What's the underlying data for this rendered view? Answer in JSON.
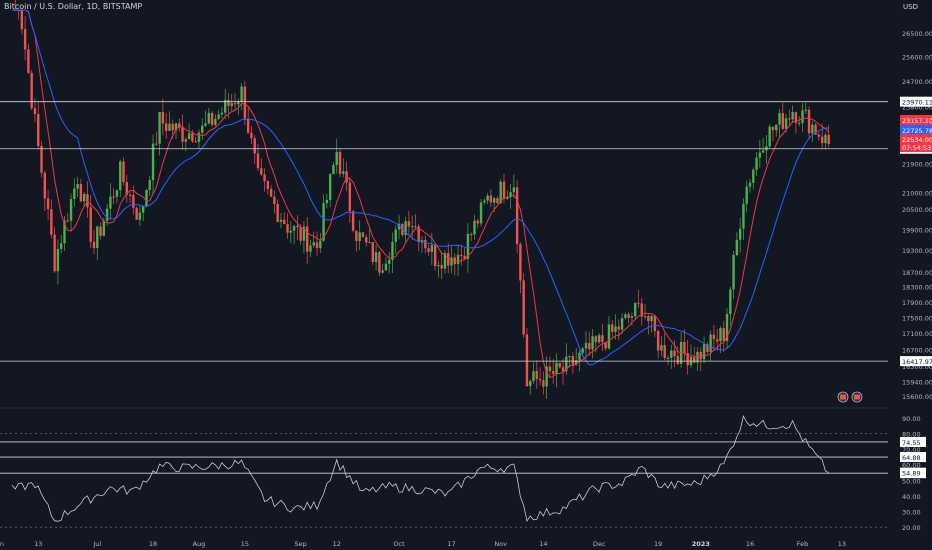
{
  "header": {
    "symbol": "Bitcoin / U.S. Dollar, 1D, BITSTAMP",
    "currency": "USD"
  },
  "colors": {
    "background": "#131722",
    "up": "#26a69a",
    "up_candle": "#4caf50",
    "down_candle": "#ef5350",
    "ma_fast": "#f23645",
    "ma_slow": "#2962ff",
    "hline": "#d1d4dc",
    "rsi": "#c9cbd1"
  },
  "chart_data": [
    {
      "type": "candlestick",
      "title": "",
      "y_axis": {
        "scale": "log",
        "range": [
          15400,
          27400
        ],
        "tick_labels": [
          "26500.00",
          "25600.00",
          "24700.00",
          "23800.00",
          "22900.00",
          "21900.00",
          "21000.00",
          "20500.00",
          "19900.00",
          "19300.00",
          "18700.00",
          "18300.00",
          "17900.00",
          "17500.00",
          "17100.00",
          "16700.00",
          "16300.00",
          "15940.00",
          "15600.00"
        ],
        "tick_values": [
          26500,
          25600,
          24700,
          23800,
          22900,
          21900,
          21000,
          20500,
          19900,
          19300,
          18700,
          18300,
          17900,
          17500,
          17100,
          16700,
          16300,
          15940,
          15600
        ]
      },
      "x_axis": {
        "tick_labels": [
          "Jun",
          "13",
          "Jul",
          "18",
          "Aug",
          "15",
          "Sep",
          "12",
          "Oct",
          "17",
          "Nov",
          "14",
          "Dec",
          "19",
          "2023",
          "16",
          "Feb",
          "13"
        ]
      },
      "horizontal_lines": [
        {
          "value": 23970.11,
          "label": "23970.11"
        },
        {
          "value": 22379.82,
          "label": "22379.82"
        },
        {
          "value": 16417.97,
          "label": "16417.97"
        }
      ],
      "price_labels": [
        {
          "label": "23157.10",
          "series": "last price",
          "color": "#f23645"
        },
        {
          "label": "22725.78",
          "series": "MA slow",
          "color": "#2962ff"
        },
        {
          "label": "22534.00",
          "series": "MA fast",
          "color": "#f23645"
        },
        {
          "label": "07:54:53",
          "series": "countdown",
          "color": "#f23645"
        }
      ],
      "grid": false,
      "series": [
        {
          "kind": "candles",
          "approx_close_path": [
            {
              "date": "2022-06-05",
              "close": 30000
            },
            {
              "date": "2022-06-13",
              "close": 22400
            },
            {
              "date": "2022-06-18",
              "close": 19000
            },
            {
              "date": "2022-06-25",
              "close": 21500
            },
            {
              "date": "2022-06-30",
              "close": 19400
            },
            {
              "date": "2022-07-08",
              "close": 21600
            },
            {
              "date": "2022-07-14",
              "close": 20200
            },
            {
              "date": "2022-07-20",
              "close": 23300
            },
            {
              "date": "2022-07-27",
              "close": 22900
            },
            {
              "date": "2022-08-02",
              "close": 23000
            },
            {
              "date": "2022-08-14",
              "close": 24300
            },
            {
              "date": "2022-08-19",
              "close": 21400
            },
            {
              "date": "2022-08-28",
              "close": 20000
            },
            {
              "date": "2022-09-06",
              "close": 19400
            },
            {
              "date": "2022-09-12",
              "close": 22300
            },
            {
              "date": "2022-09-18",
              "close": 19800
            },
            {
              "date": "2022-09-25",
              "close": 18900
            },
            {
              "date": "2022-10-04",
              "close": 20300
            },
            {
              "date": "2022-10-12",
              "close": 19100
            },
            {
              "date": "2022-10-20",
              "close": 19200
            },
            {
              "date": "2022-10-28",
              "close": 20800
            },
            {
              "date": "2022-11-05",
              "close": 21300
            },
            {
              "date": "2022-11-09",
              "close": 15900
            },
            {
              "date": "2022-11-20",
              "close": 16200
            },
            {
              "date": "2022-11-25",
              "close": 16500
            },
            {
              "date": "2022-12-05",
              "close": 17100
            },
            {
              "date": "2022-12-14",
              "close": 17800
            },
            {
              "date": "2022-12-20",
              "close": 16700
            },
            {
              "date": "2022-12-31",
              "close": 16550
            },
            {
              "date": "2023-01-08",
              "close": 17100
            },
            {
              "date": "2023-01-14",
              "close": 20900
            },
            {
              "date": "2023-01-20",
              "close": 22700
            },
            {
              "date": "2023-01-29",
              "close": 23700
            },
            {
              "date": "2023-02-02",
              "close": 23400
            },
            {
              "date": "2023-02-09",
              "close": 22534
            }
          ]
        },
        {
          "kind": "line",
          "role": "fast moving average"
        },
        {
          "kind": "line",
          "role": "slow moving average"
        }
      ]
    },
    {
      "type": "line",
      "title": "",
      "y_axis": {
        "range": [
          15,
          95
        ],
        "tick_labels": [
          "90.00",
          "80.00",
          "70.00",
          "60.00",
          "50.00",
          "40.00",
          "30.00",
          "20.00"
        ],
        "tick_values": [
          90,
          80,
          70,
          60,
          50,
          40,
          30,
          20
        ]
      },
      "horizontal_lines": [
        {
          "value": 74.55,
          "label": "74.55"
        },
        {
          "value": 64.88,
          "label": "64.88"
        },
        {
          "value": 54.57,
          "label": "54.57"
        }
      ],
      "value_label": {
        "value": 54.89,
        "label": "54.89"
      },
      "series": [
        {
          "kind": "rsi",
          "approx_path": [
            {
              "date": "2022-06-05",
              "value": 44
            },
            {
              "date": "2022-06-12",
              "value": 48
            },
            {
              "date": "2022-06-18",
              "value": 24
            },
            {
              "date": "2022-06-25",
              "value": 34
            },
            {
              "date": "2022-07-05",
              "value": 45
            },
            {
              "date": "2022-07-12",
              "value": 43
            },
            {
              "date": "2022-07-20",
              "value": 59
            },
            {
              "date": "2022-07-27",
              "value": 58
            },
            {
              "date": "2022-08-05",
              "value": 59
            },
            {
              "date": "2022-08-14",
              "value": 61
            },
            {
              "date": "2022-08-21",
              "value": 38
            },
            {
              "date": "2022-08-30",
              "value": 32
            },
            {
              "date": "2022-09-06",
              "value": 34
            },
            {
              "date": "2022-09-12",
              "value": 62
            },
            {
              "date": "2022-09-20",
              "value": 42
            },
            {
              "date": "2022-09-28",
              "value": 46
            },
            {
              "date": "2022-10-08",
              "value": 44
            },
            {
              "date": "2022-10-16",
              "value": 41
            },
            {
              "date": "2022-10-26",
              "value": 58
            },
            {
              "date": "2022-11-05",
              "value": 58
            },
            {
              "date": "2022-11-09",
              "value": 26
            },
            {
              "date": "2022-11-20",
              "value": 32
            },
            {
              "date": "2022-11-30",
              "value": 45
            },
            {
              "date": "2022-12-08",
              "value": 48
            },
            {
              "date": "2022-12-14",
              "value": 58
            },
            {
              "date": "2022-12-20",
              "value": 46
            },
            {
              "date": "2022-12-31",
              "value": 48
            },
            {
              "date": "2023-01-08",
              "value": 60
            },
            {
              "date": "2023-01-14",
              "value": 89
            },
            {
              "date": "2023-01-21",
              "value": 85
            },
            {
              "date": "2023-01-29",
              "value": 86
            },
            {
              "date": "2023-02-02",
              "value": 74
            },
            {
              "date": "2023-02-09",
              "value": 54.89
            }
          ]
        }
      ]
    }
  ]
}
